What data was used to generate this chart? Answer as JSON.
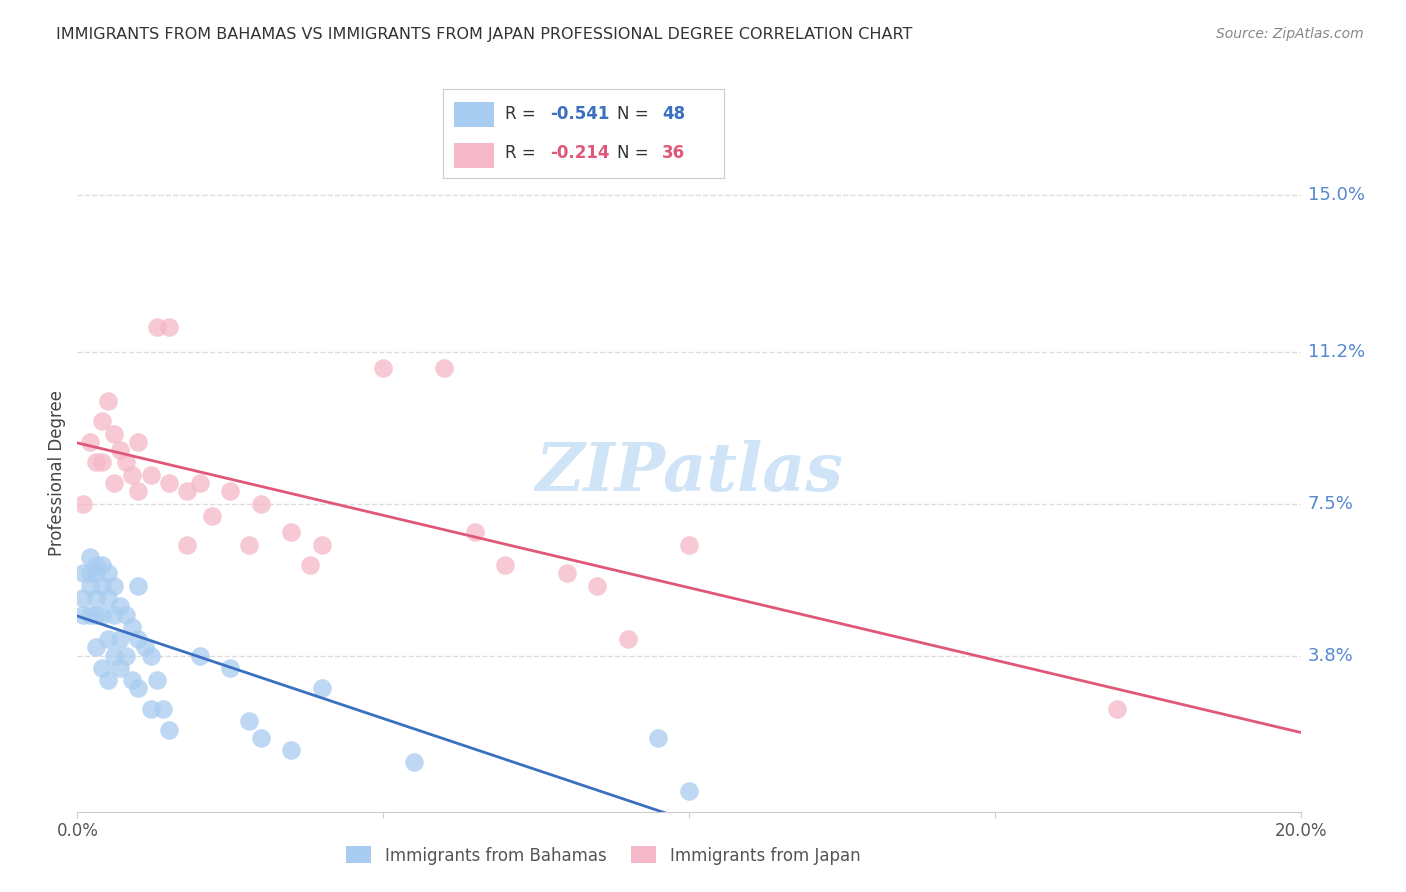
{
  "title": "IMMIGRANTS FROM BAHAMAS VS IMMIGRANTS FROM JAPAN PROFESSIONAL DEGREE CORRELATION CHART",
  "source": "Source: ZipAtlas.com",
  "ylabel_label": "Professional Degree",
  "xlim": [
    0.0,
    0.2
  ],
  "ylim": [
    0.0,
    0.165
  ],
  "legend1_r": "-0.541",
  "legend1_n": "48",
  "legend2_r": "-0.214",
  "legend2_n": "36",
  "color_blue": "#A8CCF0",
  "color_pink": "#F4B8C8",
  "trendline_blue": "#3B6FBF",
  "trendline_pink": "#E05878",
  "watermark": "ZIPatlas",
  "watermark_color": "#D0E4F8",
  "blue_scatter_x": [
    0.001,
    0.001,
    0.001,
    0.002,
    0.002,
    0.002,
    0.002,
    0.003,
    0.003,
    0.003,
    0.003,
    0.003,
    0.004,
    0.004,
    0.004,
    0.004,
    0.005,
    0.005,
    0.005,
    0.005,
    0.006,
    0.006,
    0.006,
    0.007,
    0.007,
    0.007,
    0.008,
    0.008,
    0.009,
    0.009,
    0.01,
    0.01,
    0.01,
    0.011,
    0.012,
    0.012,
    0.013,
    0.014,
    0.015,
    0.02,
    0.025,
    0.028,
    0.03,
    0.035,
    0.04,
    0.055,
    0.095,
    0.1
  ],
  "blue_scatter_y": [
    0.058,
    0.052,
    0.048,
    0.062,
    0.058,
    0.055,
    0.048,
    0.06,
    0.058,
    0.052,
    0.048,
    0.04,
    0.06,
    0.055,
    0.048,
    0.035,
    0.058,
    0.052,
    0.042,
    0.032,
    0.055,
    0.048,
    0.038,
    0.05,
    0.042,
    0.035,
    0.048,
    0.038,
    0.045,
    0.032,
    0.055,
    0.042,
    0.03,
    0.04,
    0.038,
    0.025,
    0.032,
    0.025,
    0.02,
    0.038,
    0.035,
    0.022,
    0.018,
    0.015,
    0.03,
    0.012,
    0.018,
    0.005
  ],
  "pink_scatter_x": [
    0.001,
    0.002,
    0.003,
    0.004,
    0.004,
    0.005,
    0.006,
    0.006,
    0.007,
    0.008,
    0.009,
    0.01,
    0.01,
    0.012,
    0.013,
    0.015,
    0.015,
    0.018,
    0.018,
    0.02,
    0.022,
    0.025,
    0.028,
    0.03,
    0.035,
    0.038,
    0.04,
    0.05,
    0.06,
    0.065,
    0.07,
    0.08,
    0.085,
    0.09,
    0.1,
    0.17
  ],
  "pink_scatter_y": [
    0.075,
    0.09,
    0.085,
    0.095,
    0.085,
    0.1,
    0.092,
    0.08,
    0.088,
    0.085,
    0.082,
    0.09,
    0.078,
    0.082,
    0.118,
    0.118,
    0.08,
    0.078,
    0.065,
    0.08,
    0.072,
    0.078,
    0.065,
    0.075,
    0.068,
    0.06,
    0.065,
    0.108,
    0.108,
    0.068,
    0.06,
    0.058,
    0.055,
    0.042,
    0.065,
    0.025
  ],
  "grid_color": "#DDDDDD",
  "background_color": "#FFFFFF",
  "blue_trend_x0": 0.0,
  "blue_trend_y0": 0.062,
  "blue_trend_x1": 0.115,
  "blue_trend_y1": 0.0,
  "pink_trend_x0": 0.0,
  "pink_trend_y0": 0.092,
  "pink_trend_x1": 0.2,
  "pink_trend_y1": 0.06
}
